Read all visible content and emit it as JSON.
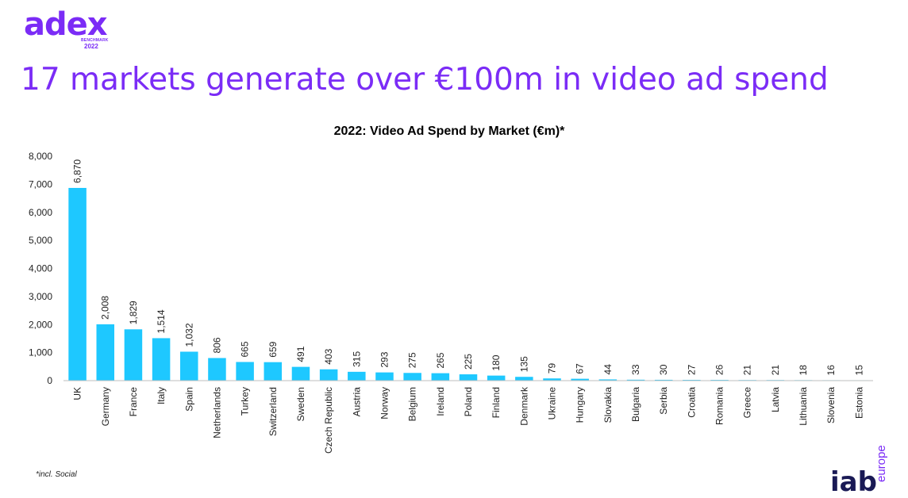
{
  "logo": {
    "word": "adex",
    "sub": "BENCHMARK",
    "year": "2022"
  },
  "headline": "17 markets generate over €100m in video ad spend",
  "footnote": "*incl. Social",
  "brand": {
    "word": "iab",
    "region": "europe"
  },
  "colors": {
    "bar": "#1ec8ff",
    "title_purple": "#7b2cf6",
    "axis": "#bfbfbf"
  },
  "chart_data": {
    "type": "bar",
    "title": "2022: Video Ad Spend by Market (€m)*",
    "categories": [
      "UK",
      "Germany",
      "France",
      "Italy",
      "Spain",
      "Netherlands",
      "Turkey",
      "Switzerland",
      "Sweden",
      "Czech Republic",
      "Austria",
      "Norway",
      "Belgium",
      "Ireland",
      "Poland",
      "Finland",
      "Denmark",
      "Ukraine",
      "Hungary",
      "Slovakia",
      "Bulgaria",
      "Serbia",
      "Croatia",
      "Romania",
      "Greece",
      "Latvia",
      "Lithuania",
      "Slovenia",
      "Estonia"
    ],
    "values": [
      6870,
      2008,
      1829,
      1514,
      1032,
      806,
      665,
      659,
      491,
      403,
      315,
      293,
      275,
      265,
      225,
      180,
      135,
      79,
      67,
      44,
      33,
      30,
      27,
      26,
      21,
      21,
      18,
      16,
      15
    ],
    "labels": [
      "6,870",
      "2,008",
      "1,829",
      "1,514",
      "1,032",
      "806",
      "665",
      "659",
      "491",
      "403",
      "315",
      "293",
      "275",
      "265",
      "225",
      "180",
      "135",
      "79",
      "67",
      "44",
      "33",
      "30",
      "27",
      "26",
      "21",
      "21",
      "18",
      "16",
      "15"
    ],
    "yticks": [
      "0",
      "1,000",
      "2,000",
      "3,000",
      "4,000",
      "5,000",
      "6,000",
      "7,000",
      "8,000"
    ],
    "ylim": [
      0,
      8000
    ],
    "grid": false,
    "legend": "none"
  }
}
